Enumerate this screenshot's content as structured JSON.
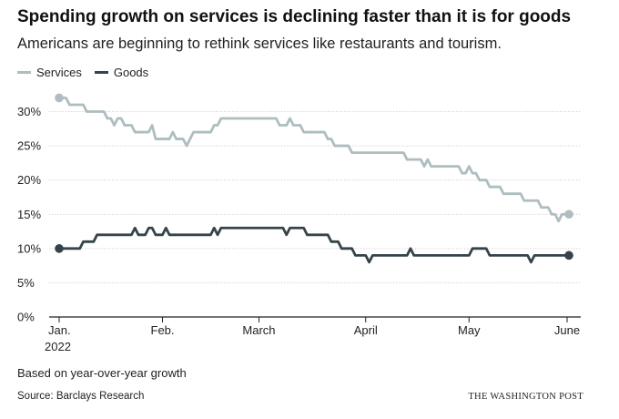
{
  "title": "Spending growth on services is declining faster than it is for goods",
  "subtitle": "Americans are beginning to rethink services like restaurants and tourism.",
  "footer": {
    "note": "Based on year-over-year growth",
    "source": "Source: Barclays Research",
    "credit": "THE WASHINGTON POST"
  },
  "colors": {
    "services": "#aebdbf",
    "goods": "#34444a",
    "grid": "#d8d8d8",
    "axis": "#222222"
  },
  "chart_data": {
    "type": "line",
    "title": "Spending growth on services is declining faster than it is for goods",
    "xlabel": "",
    "ylabel": "",
    "ylim": [
      0,
      30
    ],
    "yticks": [
      0,
      5,
      10,
      15,
      20,
      25,
      30
    ],
    "ytick_labels": [
      "0%",
      "5%",
      "10%",
      "15%",
      "20%",
      "25%",
      "30%"
    ],
    "xlim": [
      0,
      148
    ],
    "xticks": [
      0,
      30,
      58,
      89,
      119,
      150
    ],
    "xtick_labels": [
      "Jan.",
      "Feb.",
      "March",
      "April",
      "May",
      "June"
    ],
    "xtick_sublabel": "2022",
    "grid": true,
    "legend_position": "top-left",
    "x_unit": "days since Jan. 1, 2022",
    "series": [
      {
        "name": "Services",
        "color_key": "services",
        "points": [
          [
            0,
            32
          ],
          [
            2,
            32
          ],
          [
            3,
            31
          ],
          [
            7,
            31
          ],
          [
            8,
            30
          ],
          [
            13,
            30
          ],
          [
            14,
            29
          ],
          [
            15,
            29
          ],
          [
            16,
            28
          ],
          [
            17,
            29
          ],
          [
            18,
            29
          ],
          [
            19,
            28
          ],
          [
            21,
            28
          ],
          [
            22,
            27
          ],
          [
            26,
            27
          ],
          [
            27,
            28
          ],
          [
            28,
            26
          ],
          [
            32,
            26
          ],
          [
            33,
            27
          ],
          [
            34,
            26
          ],
          [
            36,
            26
          ],
          [
            37,
            25
          ],
          [
            38,
            26
          ],
          [
            39,
            27
          ],
          [
            44,
            27
          ],
          [
            45,
            28
          ],
          [
            46,
            28
          ],
          [
            47,
            29
          ],
          [
            63,
            29
          ],
          [
            64,
            28
          ],
          [
            66,
            28
          ],
          [
            67,
            29
          ],
          [
            68,
            28
          ],
          [
            70,
            28
          ],
          [
            71,
            27
          ],
          [
            77,
            27
          ],
          [
            78,
            26
          ],
          [
            79,
            26
          ],
          [
            80,
            25
          ],
          [
            84,
            25
          ],
          [
            85,
            24
          ],
          [
            99,
            24
          ],
          [
            100,
            24
          ],
          [
            101,
            23
          ],
          [
            105,
            23
          ],
          [
            106,
            22
          ],
          [
            107,
            23
          ],
          [
            108,
            22
          ],
          [
            116,
            22
          ],
          [
            117,
            21
          ],
          [
            118,
            21
          ],
          [
            119,
            22
          ],
          [
            120,
            21
          ],
          [
            121,
            21
          ],
          [
            122,
            20
          ],
          [
            124,
            20
          ],
          [
            125,
            19
          ],
          [
            128,
            19
          ],
          [
            129,
            18
          ],
          [
            134,
            18
          ],
          [
            135,
            17
          ],
          [
            139,
            17
          ],
          [
            140,
            16
          ],
          [
            142,
            16
          ],
          [
            143,
            15
          ],
          [
            144,
            15
          ],
          [
            145,
            14
          ],
          [
            146,
            15
          ],
          [
            148,
            15
          ]
        ]
      },
      {
        "name": "Goods",
        "color_key": "goods",
        "points": [
          [
            0,
            10
          ],
          [
            6,
            10
          ],
          [
            7,
            11
          ],
          [
            10,
            11
          ],
          [
            11,
            12
          ],
          [
            21,
            12
          ],
          [
            22,
            13
          ],
          [
            23,
            12
          ],
          [
            25,
            12
          ],
          [
            26,
            13
          ],
          [
            27,
            13
          ],
          [
            28,
            12
          ],
          [
            30,
            12
          ],
          [
            31,
            13
          ],
          [
            32,
            12
          ],
          [
            44,
            12
          ],
          [
            45,
            13
          ],
          [
            46,
            12
          ],
          [
            47,
            13
          ],
          [
            65,
            13
          ],
          [
            66,
            12
          ],
          [
            67,
            13
          ],
          [
            71,
            13
          ],
          [
            72,
            12
          ],
          [
            78,
            12
          ],
          [
            79,
            11
          ],
          [
            81,
            11
          ],
          [
            82,
            10
          ],
          [
            85,
            10
          ],
          [
            86,
            9
          ],
          [
            89,
            9
          ],
          [
            90,
            8
          ],
          [
            91,
            9
          ],
          [
            101,
            9
          ],
          [
            102,
            10
          ],
          [
            103,
            9
          ],
          [
            119,
            9
          ],
          [
            120,
            10
          ],
          [
            124,
            10
          ],
          [
            125,
            9
          ],
          [
            136,
            9
          ],
          [
            137,
            8
          ],
          [
            138,
            9
          ],
          [
            148,
            9
          ]
        ]
      }
    ]
  }
}
